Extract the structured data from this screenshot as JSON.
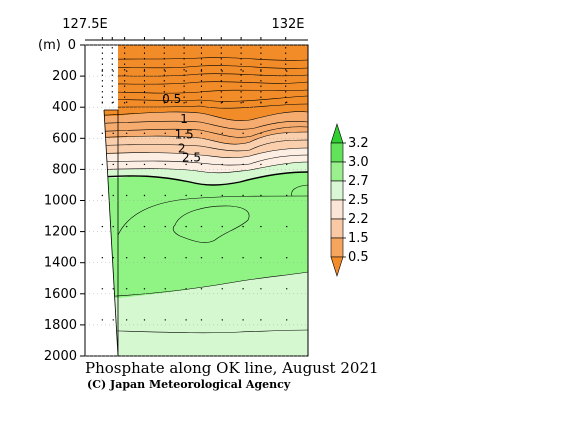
{
  "chart_data": {
    "type": "contour",
    "title": "Phosphate along OK line, August 2021",
    "credit": "(C) Japan Meteorological Agency",
    "x_tick_labels": [
      "127.5E",
      "132E"
    ],
    "x_range": [
      127.5,
      132
    ],
    "y_unit_label": "(m)",
    "y_ticks": [
      0,
      200,
      400,
      600,
      800,
      1000,
      1200,
      1400,
      1600,
      1800,
      2000
    ],
    "y_range": [
      0,
      2000
    ],
    "y_inverted": true,
    "station_longitudes": [
      127.85,
      128.05,
      128.3,
      128.7,
      129.1,
      129.5,
      129.85,
      130.25,
      130.65,
      131.05,
      131.55
    ],
    "contour_labels": [
      {
        "text": "0.5",
        "lon": 129.25,
        "depth": 360
      },
      {
        "text": "1",
        "lon": 129.5,
        "depth": 490
      },
      {
        "text": "1.5",
        "lon": 129.5,
        "depth": 590
      },
      {
        "text": "2",
        "lon": 129.45,
        "depth": 680
      },
      {
        "text": "2.5",
        "lon": 129.65,
        "depth": 735
      }
    ],
    "colorbar": {
      "levels": [
        0.5,
        1.5,
        2.2,
        2.5,
        2.7,
        3.0,
        3.2
      ],
      "colors": [
        "#f28c28",
        "#f5a55e",
        "#f8c9a4",
        "#fbe5d6",
        "#d9f7d4",
        "#99f08c",
        "#63e35a",
        "#2fcf2f"
      ]
    },
    "fill_colors": {
      "lt_1_5": "#f28c28",
      "c1_5_2_2": "#f6ac6e",
      "c2_2_2_5": "#f9cfad",
      "c2_5_2_7": "#fdeee3",
      "c2_7_3_0": "#d6f8d0",
      "c3_0_3_2": "#8ff483"
    }
  }
}
